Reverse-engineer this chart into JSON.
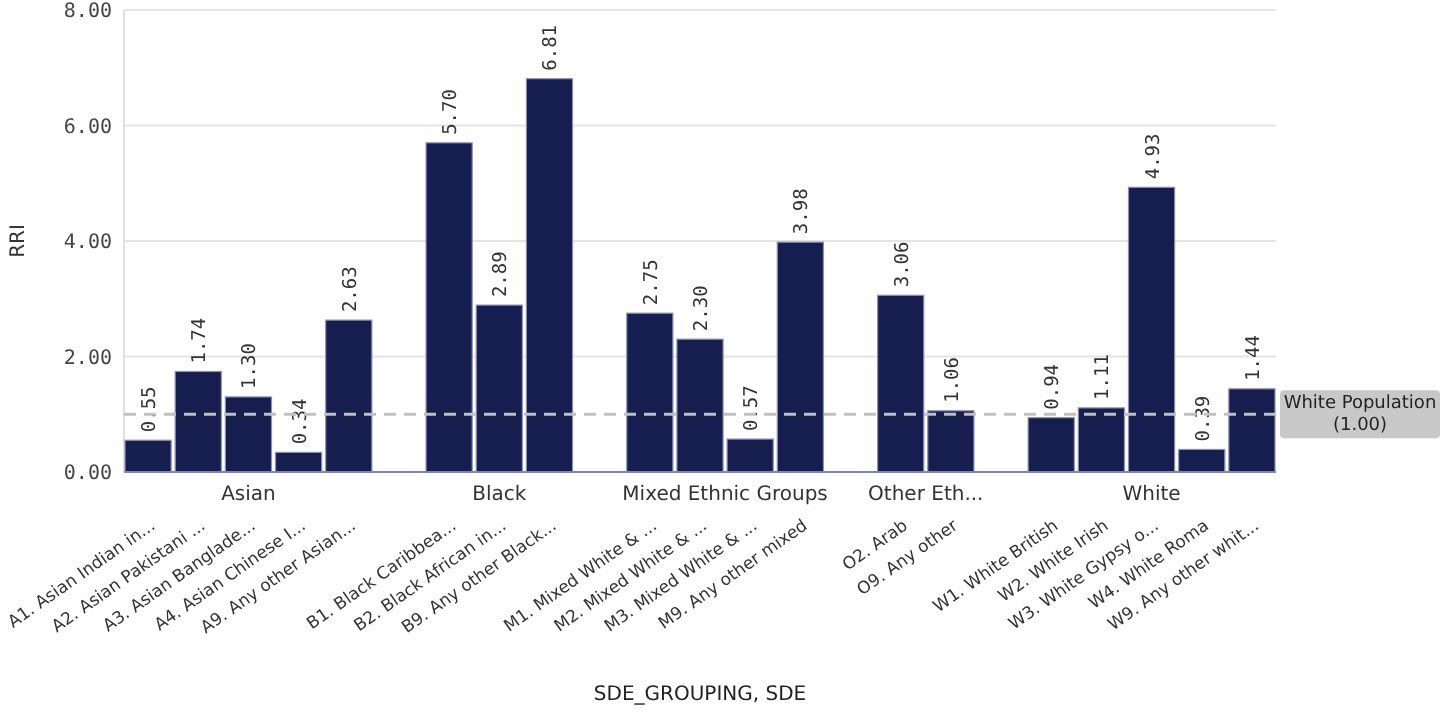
{
  "chart_data": {
    "type": "bar",
    "xlabel": "SDE_GROUPING, SDE",
    "ylabel": "RRI",
    "categories": [
      "A1. Asian Indian in...",
      "A2. Asian Pakistani ...",
      "A3. Asian Banglade...",
      "A4. Asian Chinese I...",
      "A9. Any other Asian...",
      null,
      "B1. Black Caribbea...",
      "B2. Black African in...",
      "B9. Any other Black...",
      null,
      "M1. Mixed White & ...",
      "M2. Mixed White & ...",
      "M3. Mixed White & ...",
      "M9. Any other mixed",
      null,
      "O2. Arab",
      "O9. Any other",
      null,
      "W1. White British",
      "W2. White Irish",
      "W3. White Gypsy o...",
      "W4. White Roma",
      "W9. Any other whit..."
    ],
    "values": [
      0.55,
      1.74,
      1.3,
      0.34,
      2.63,
      null,
      5.7,
      2.89,
      6.81,
      null,
      2.75,
      2.3,
      0.57,
      3.98,
      null,
      3.06,
      1.06,
      null,
      0.94,
      1.11,
      4.93,
      0.39,
      1.44
    ],
    "value_labels": [
      "0.55",
      "1.74",
      "1.30",
      "0.34",
      "2.63",
      null,
      "5.70",
      "2.89",
      "6.81",
      null,
      "2.75",
      "2.30",
      "0.57",
      "3.98",
      null,
      "3.06",
      "1.06",
      null,
      "0.94",
      "1.11",
      "4.93",
      "0.39",
      "1.44"
    ],
    "color": "#161d4f",
    "annotations": [
      "Asian",
      "Black",
      "Mixed Ethnic Groups",
      "Other Eth...",
      "White"
    ],
    "ylim": [
      0,
      8
    ],
    "yticks": [
      {
        "value": 0,
        "label": "0.00"
      },
      {
        "value": 2,
        "label": "2.00"
      },
      {
        "value": 4,
        "label": "4.00"
      },
      {
        "value": 6,
        "label": "6.00"
      },
      {
        "value": 8,
        "label": "8.00"
      }
    ],
    "grid": "y",
    "ref_lines": [
      {
        "axis": "y",
        "value": 1,
        "label": "White Population (1.00)",
        "color": "#c0c0c0",
        "line_style": "dashed"
      }
    ]
  }
}
